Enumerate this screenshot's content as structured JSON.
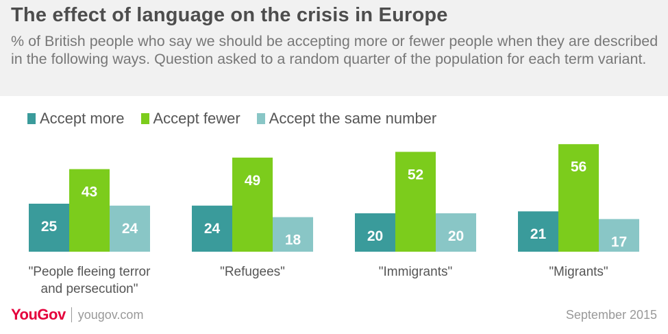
{
  "title": "The effect of language on the crisis in Europe",
  "subtitle": "% of British people who say we should be accepting more or fewer people when they are described in the following ways. Question asked to a random quarter of the population for each term variant.",
  "legend": [
    {
      "label": "Accept more",
      "color": "#3a9b9b"
    },
    {
      "label": "Accept fewer",
      "color": "#7ccc1c"
    },
    {
      "label": "Accept the same number",
      "color": "#89c6c6"
    }
  ],
  "chart_data": {
    "type": "bar",
    "categories": [
      [
        "\"People fleeing terror",
        "and persecution\""
      ],
      [
        "\"Refugees\""
      ],
      [
        "\"Immigrants\""
      ],
      [
        "\"Migrants\""
      ]
    ],
    "series": [
      {
        "name": "Accept more",
        "values": [
          25,
          24,
          20,
          21
        ],
        "color": "#3a9b9b"
      },
      {
        "name": "Accept fewer",
        "values": [
          43,
          49,
          52,
          56
        ],
        "color": "#7ccc1c"
      },
      {
        "name": "Accept the same number",
        "values": [
          24,
          18,
          20,
          17
        ],
        "color": "#89c6c6"
      }
    ],
    "ylim": [
      0,
      56
    ],
    "grid": false,
    "legend_position": "top-left"
  },
  "footer": {
    "logo": "YouGov",
    "site": "yougov.com",
    "date": "September 2015"
  }
}
